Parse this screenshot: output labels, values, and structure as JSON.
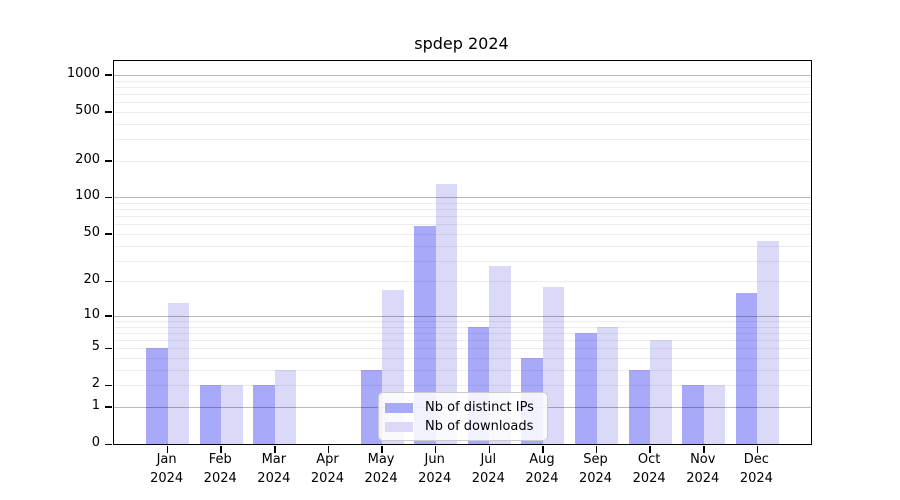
{
  "chart_data": {
    "type": "bar",
    "title": "spdep 2024",
    "categories": [
      "Jan 2024",
      "Feb 2024",
      "Mar 2024",
      "Apr 2024",
      "May 2024",
      "Jun 2024",
      "Jul 2024",
      "Aug 2024",
      "Sep 2024",
      "Oct 2024",
      "Nov 2024",
      "Dec 2024"
    ],
    "series": [
      {
        "name": "Nb of distinct IPs",
        "color": "#a9a9fa",
        "values": [
          5,
          2,
          2,
          0,
          3,
          58,
          8,
          4,
          7,
          3,
          2,
          16
        ]
      },
      {
        "name": "Nb of downloads",
        "color": "#dadaf8",
        "values": [
          13,
          2,
          3,
          0,
          17,
          128,
          27,
          18,
          8,
          6,
          2,
          44
        ]
      }
    ],
    "ylabel": "",
    "xlabel": "",
    "yscale": "log1p",
    "yticks": [
      0,
      1,
      2,
      5,
      10,
      20,
      50,
      100,
      200,
      500,
      1000
    ],
    "ylim": [
      0,
      1300
    ],
    "grid": {
      "major_lines": [
        1,
        10,
        100,
        1000
      ],
      "minor_multiples": [
        2,
        3,
        4,
        5,
        6,
        7,
        8,
        9
      ],
      "minor_decades": [
        1,
        10,
        100
      ]
    },
    "legend_position": "lower-center"
  }
}
